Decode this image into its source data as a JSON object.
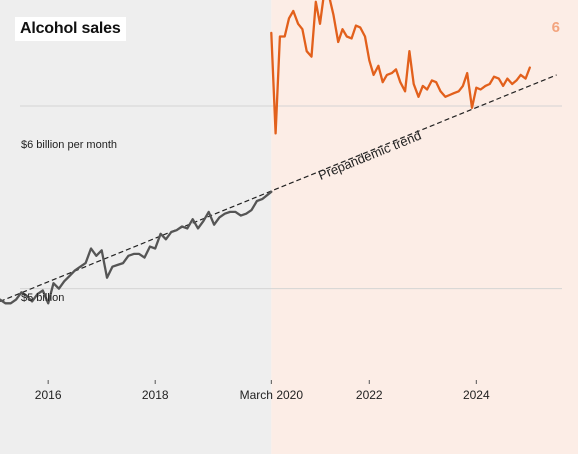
{
  "title": "Alcohol sales",
  "panel_number": "6",
  "colors": {
    "pre_bg": "#eeeeee",
    "post_bg": "#fcede6",
    "pre_line": "#555555",
    "post_line": "#e2601c",
    "number": "#f3a47e"
  },
  "chart_data": {
    "type": "line",
    "title": "Alcohol sales",
    "y_labels": [
      "$6 billion per month",
      "$5 billion"
    ],
    "y_label_values": [
      6.0,
      5.0
    ],
    "x_ticks": [
      "2016",
      "2018",
      "March 2020",
      "2022",
      "2024"
    ],
    "x_tick_values": [
      2016.0,
      2018.0,
      2020.17,
      2022.0,
      2024.0
    ],
    "annotation": "Prepandemic trend",
    "pandemic_start": 2020.17,
    "xlim": [
      2015.1,
      2025.9
    ],
    "ylim": [
      4.5,
      6.58
    ],
    "trend": {
      "x": [
        2015.1,
        2025.5
      ],
      "y": [
        4.93,
        6.17
      ]
    },
    "series": [
      {
        "period": "prepandemic",
        "x": [
          2015.1,
          2015.2,
          2015.3,
          2015.4,
          2015.5,
          2015.6,
          2015.7,
          2015.8,
          2015.9,
          2016.0,
          2016.1,
          2016.2,
          2016.3,
          2016.4,
          2016.5,
          2016.6,
          2016.7,
          2016.8,
          2016.9,
          2017.0,
          2017.1,
          2017.2,
          2017.3,
          2017.4,
          2017.5,
          2017.6,
          2017.7,
          2017.8,
          2017.9,
          2018.0,
          2018.1,
          2018.2,
          2018.3,
          2018.4,
          2018.5,
          2018.6,
          2018.7,
          2018.8,
          2018.9,
          2019.0,
          2019.1,
          2019.2,
          2019.3,
          2019.4,
          2019.5,
          2019.6,
          2019.7,
          2019.8,
          2019.9,
          2020.0,
          2020.17
        ],
        "y": [
          4.94,
          4.92,
          4.92,
          4.94,
          4.98,
          4.96,
          4.93,
          4.97,
          4.99,
          4.92,
          5.03,
          5.0,
          5.04,
          5.07,
          5.1,
          5.12,
          5.14,
          5.22,
          5.18,
          5.21,
          5.06,
          5.12,
          5.13,
          5.14,
          5.18,
          5.19,
          5.19,
          5.17,
          5.23,
          5.22,
          5.3,
          5.27,
          5.31,
          5.32,
          5.34,
          5.33,
          5.38,
          5.33,
          5.37,
          5.42,
          5.35,
          5.39,
          5.41,
          5.42,
          5.42,
          5.4,
          5.41,
          5.43,
          5.48,
          5.49,
          5.53
        ]
      },
      {
        "period": "pandemic",
        "x": [
          2020.17,
          2020.25,
          2020.33,
          2020.42,
          2020.5,
          2020.58,
          2020.67,
          2020.75,
          2020.83,
          2020.92,
          2021.0,
          2021.08,
          2021.17,
          2021.25,
          2021.33,
          2021.42,
          2021.5,
          2021.58,
          2021.67,
          2021.75,
          2021.83,
          2021.92,
          2022.0,
          2022.08,
          2022.17,
          2022.25,
          2022.33,
          2022.42,
          2022.5,
          2022.58,
          2022.67,
          2022.75,
          2022.83,
          2022.92,
          2023.0,
          2023.08,
          2023.17,
          2023.25,
          2023.33,
          2023.42,
          2023.5,
          2023.58,
          2023.67,
          2023.75,
          2023.83,
          2023.92,
          2024.0,
          2024.08,
          2024.17,
          2024.25,
          2024.33,
          2024.42,
          2024.5,
          2024.58,
          2024.67,
          2024.75,
          2024.83,
          2024.92,
          2025.0
        ],
        "y": [
          6.4,
          5.85,
          6.38,
          6.38,
          6.48,
          6.52,
          6.45,
          6.42,
          6.3,
          6.27,
          6.57,
          6.45,
          6.65,
          6.6,
          6.5,
          6.35,
          6.42,
          6.38,
          6.37,
          6.44,
          6.43,
          6.38,
          6.25,
          6.17,
          6.22,
          6.13,
          6.17,
          6.18,
          6.2,
          6.13,
          6.08,
          6.3,
          6.12,
          6.05,
          6.11,
          6.09,
          6.14,
          6.13,
          6.08,
          6.05,
          6.06,
          6.07,
          6.08,
          6.11,
          6.18,
          5.99,
          6.1,
          6.09,
          6.11,
          6.12,
          6.16,
          6.15,
          6.11,
          6.15,
          6.12,
          6.14,
          6.17,
          6.15,
          6.21
        ]
      }
    ]
  }
}
